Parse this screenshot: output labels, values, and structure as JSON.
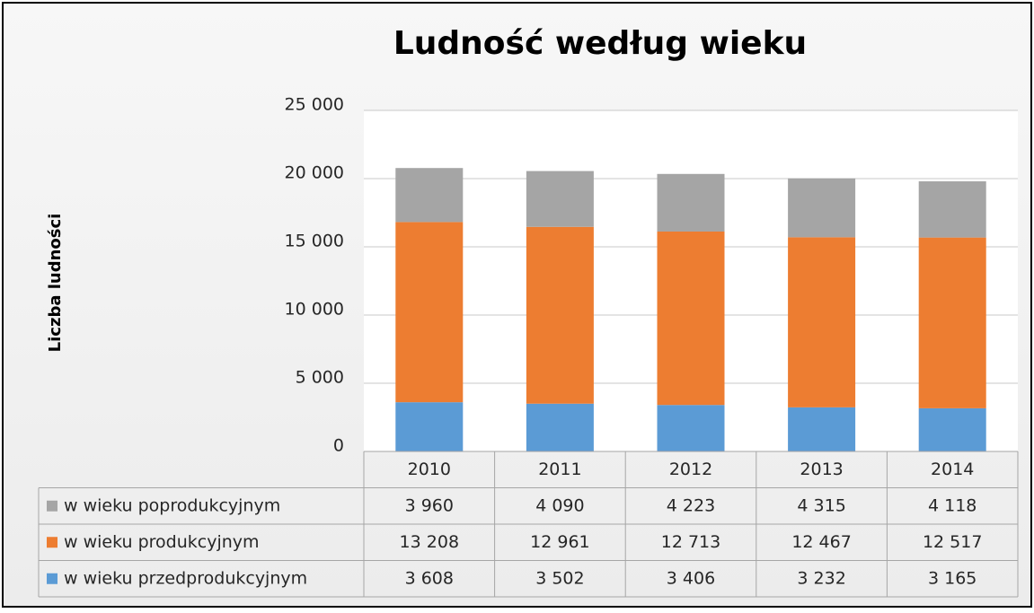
{
  "chart_data": {
    "type": "stacked_bar",
    "title": "Ludność według wieku",
    "y_label": "Liczba ludności",
    "categories": [
      "2010",
      "2011",
      "2012",
      "2013",
      "2014"
    ],
    "series": [
      {
        "name": "w wieku poprodukcyjnym",
        "color": "#a5a5a5",
        "values": [
          3960,
          4090,
          4223,
          4315,
          4118
        ],
        "value_labels": [
          "3 960",
          "4 090",
          "4 223",
          "4 315",
          "4 118"
        ]
      },
      {
        "name": "w wieku produkcyjnym",
        "color": "#ed7d31",
        "values": [
          13208,
          12961,
          12713,
          12467,
          12517
        ],
        "value_labels": [
          "13 208",
          "12 961",
          "12 713",
          "12 467",
          "12 517"
        ]
      },
      {
        "name": "w wieku przedprodukcyjnym",
        "color": "#5b9bd5",
        "values": [
          3608,
          3502,
          3406,
          3232,
          3165
        ],
        "value_labels": [
          "3 608",
          "3 502",
          "3 406",
          "3 232",
          "3 165"
        ]
      }
    ],
    "ylim": [
      0,
      25000
    ],
    "yticks": [
      0,
      {
        "value": 5000,
        "label": "5 000"
      },
      {
        "value": 10000,
        "label": "10 000"
      },
      {
        "value": 15000,
        "label": "15 000"
      },
      {
        "value": 20000,
        "label": "20 000"
      },
      {
        "value": 25000,
        "label": "25 000"
      }
    ],
    "grid": true
  }
}
